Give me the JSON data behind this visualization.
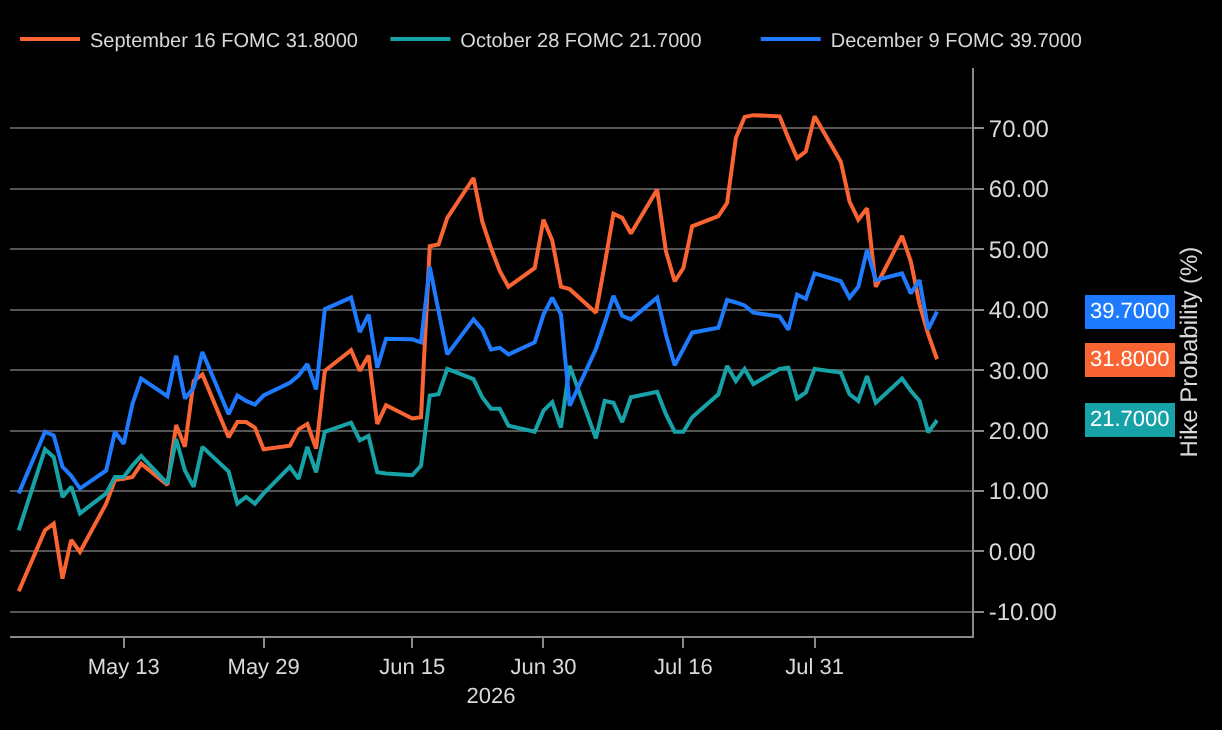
{
  "chart_data": {
    "type": "line",
    "xlabel": "2026",
    "ylabel": "Hike Probability (%)",
    "x": [
      "2026-05-01",
      "2026-05-04",
      "2026-05-05",
      "2026-05-06",
      "2026-05-07",
      "2026-05-08",
      "2026-05-11",
      "2026-05-12",
      "2026-05-13",
      "2026-05-14",
      "2026-05-15",
      "2026-05-18",
      "2026-05-19",
      "2026-05-20",
      "2026-05-21",
      "2026-05-22",
      "2026-05-25",
      "2026-05-26",
      "2026-05-27",
      "2026-05-28",
      "2026-05-29",
      "2026-06-01",
      "2026-06-02",
      "2026-06-03",
      "2026-06-04",
      "2026-06-05",
      "2026-06-08",
      "2026-06-09",
      "2026-06-10",
      "2026-06-11",
      "2026-06-12",
      "2026-06-15",
      "2026-06-16",
      "2026-06-17",
      "2026-06-18",
      "2026-06-19",
      "2026-06-22",
      "2026-06-23",
      "2026-06-24",
      "2026-06-25",
      "2026-06-26",
      "2026-06-29",
      "2026-06-30",
      "2026-07-01",
      "2026-07-02",
      "2026-07-03",
      "2026-07-06",
      "2026-07-07",
      "2026-07-08",
      "2026-07-09",
      "2026-07-10",
      "2026-07-13",
      "2026-07-14",
      "2026-07-15",
      "2026-07-16",
      "2026-07-17",
      "2026-07-20",
      "2026-07-21",
      "2026-07-22",
      "2026-07-23",
      "2026-07-24",
      "2026-07-27",
      "2026-07-28",
      "2026-07-29",
      "2026-07-30",
      "2026-07-31",
      "2026-08-03",
      "2026-08-04",
      "2026-08-05",
      "2026-08-06",
      "2026-08-07",
      "2026-08-10",
      "2026-08-11",
      "2026-08-12",
      "2026-08-13",
      "2026-08-14"
    ],
    "series": [
      {
        "name": "September 16 FOMC 31.8000",
        "color": "#fa6432",
        "values": [
          -6.6,
          3.5,
          4.6,
          -4.5,
          1.9,
          -0.1,
          7.9,
          11.8,
          12.0,
          12.3,
          14.5,
          11.0,
          20.9,
          17.3,
          28.2,
          29.3,
          18.9,
          21.4,
          21.4,
          20.5,
          16.9,
          17.5,
          20.2,
          21.1,
          17.0,
          29.9,
          33.3,
          29.9,
          32.4,
          21.1,
          24.2,
          22.0,
          22.2,
          50.5,
          50.8,
          55.2,
          61.8,
          54.6,
          50.2,
          46.4,
          43.8,
          46.9,
          54.9,
          51.5,
          43.8,
          43.4,
          39.5,
          47.5,
          55.9,
          55.2,
          52.6,
          59.9,
          49.7,
          44.7,
          46.9,
          53.8,
          55.5,
          57.7,
          68.4,
          71.9,
          72.2,
          72.0,
          68.4,
          65.1,
          66.2,
          72.0,
          64.5,
          57.9,
          54.9,
          56.8,
          43.8,
          52.2,
          48.0,
          40.9,
          35.9,
          31.8
        ]
      },
      {
        "name": "October 28 FOMC 21.7000",
        "color": "#17a2a8",
        "values": [
          3.5,
          16.9,
          15.6,
          9.0,
          10.7,
          6.3,
          9.6,
          12.3,
          12.3,
          14.2,
          15.8,
          11.2,
          18.6,
          13.4,
          10.7,
          17.3,
          13.2,
          7.9,
          9.0,
          7.9,
          9.6,
          14.0,
          12.0,
          17.3,
          13.1,
          19.8,
          21.3,
          18.4,
          19.1,
          13.1,
          12.9,
          12.6,
          14.2,
          25.8,
          26.0,
          30.2,
          28.5,
          25.5,
          23.6,
          23.6,
          20.8,
          19.8,
          23.3,
          24.7,
          20.5,
          30.7,
          18.7,
          24.9,
          24.6,
          21.4,
          25.5,
          26.4,
          22.7,
          19.8,
          19.8,
          22.2,
          26.0,
          30.7,
          28.2,
          30.2,
          27.7,
          30.2,
          30.4,
          25.3,
          26.3,
          30.2,
          29.6,
          26.0,
          24.9,
          29.0,
          24.6,
          28.6,
          26.6,
          24.9,
          19.7,
          21.7
        ]
      },
      {
        "name": "December 9 FOMC 39.7000",
        "color": "#1e7bff",
        "values": [
          9.6,
          19.8,
          19.2,
          14.0,
          12.5,
          10.4,
          13.4,
          19.8,
          17.8,
          24.4,
          28.6,
          25.7,
          32.4,
          25.3,
          27.1,
          33.0,
          22.7,
          25.8,
          24.9,
          24.3,
          25.8,
          27.9,
          29.1,
          31.0,
          26.8,
          40.1,
          42.0,
          36.3,
          39.2,
          30.4,
          35.2,
          35.1,
          34.6,
          47.1,
          39.8,
          32.6,
          38.4,
          36.7,
          33.4,
          33.7,
          32.6,
          34.6,
          39.2,
          42.0,
          39.2,
          24.1,
          33.5,
          37.8,
          42.3,
          39.0,
          38.4,
          42.0,
          35.9,
          30.8,
          33.5,
          36.2,
          37.0,
          41.6,
          41.2,
          40.7,
          39.5,
          38.9,
          36.7,
          42.5,
          41.8,
          46.0,
          44.7,
          42.0,
          43.8,
          49.9,
          44.9,
          46.0,
          42.7,
          44.9,
          36.8,
          39.7
        ]
      }
    ],
    "annotations": [
      "31.8000",
      "21.7000",
      "39.7000"
    ],
    "xlim": [
      "2026-04-30",
      "2026-08-18"
    ],
    "xticks": [
      {
        "value": "2026-05-13",
        "label": "May 13"
      },
      {
        "value": "2026-05-29",
        "label": "May 29"
      },
      {
        "value": "2026-06-15",
        "label": "Jun 15"
      },
      {
        "value": "2026-06-30",
        "label": "Jun 30"
      },
      {
        "value": "2026-07-16",
        "label": "Jul 16"
      },
      {
        "value": "2026-07-31",
        "label": "Jul 31"
      }
    ],
    "ylim": [
      -14,
      80
    ],
    "yticks": [
      {
        "value": -10,
        "label": "-10.00"
      },
      {
        "value": 0,
        "label": "0.00"
      },
      {
        "value": 10,
        "label": "10.00"
      },
      {
        "value": 20,
        "label": "20.00"
      },
      {
        "value": 30,
        "label": "30.00"
      },
      {
        "value": 40,
        "label": "40.00"
      },
      {
        "value": 50,
        "label": "50.00"
      },
      {
        "value": 60,
        "label": "60.00"
      },
      {
        "value": 70,
        "label": "70.00"
      }
    ],
    "grid": "y",
    "legend": "top",
    "marker": "none",
    "line_style": "solid"
  }
}
